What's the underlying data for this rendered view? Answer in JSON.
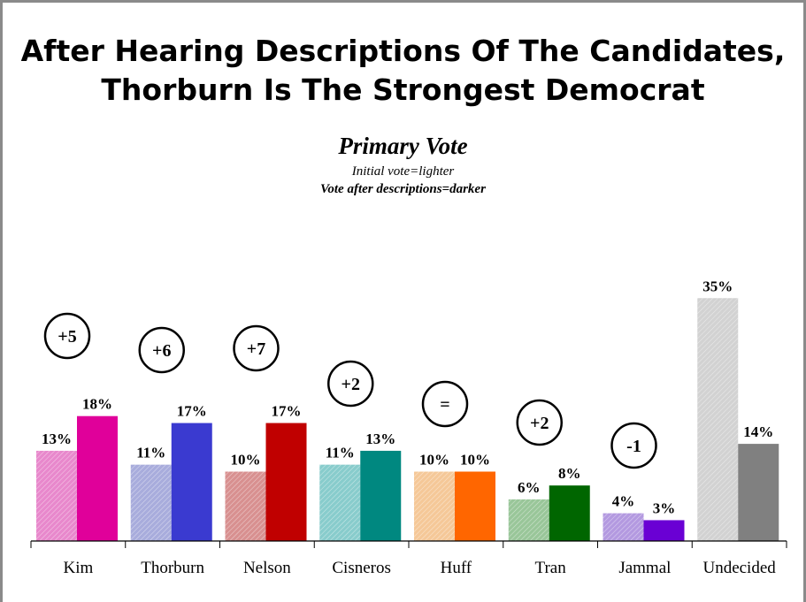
{
  "header": {
    "title_line1": "After Hearing Descriptions Of The Candidates,",
    "title_line2": "Thorburn Is The Strongest Democrat",
    "subtitle": "Primary Vote",
    "note_initial": "Initial vote=lighter",
    "note_after": "Vote after descriptions=darker"
  },
  "chart_data": {
    "type": "bar",
    "title": "Primary Vote",
    "categories": [
      "Kim",
      "Thorburn",
      "Nelson",
      "Cisneros",
      "Huff",
      "Tran",
      "Jammal",
      "Undecided"
    ],
    "series": [
      {
        "values": [
          13,
          11,
          10,
          11,
          10,
          6,
          4,
          35
        ]
      },
      {
        "values": [
          18,
          17,
          17,
          13,
          10,
          8,
          3,
          14
        ]
      }
    ],
    "value_labels": {
      "initial": [
        "13%",
        "11%",
        "10%",
        "11%",
        "10%",
        "6%",
        "4%",
        "35%"
      ],
      "after": [
        "18%",
        "17%",
        "17%",
        "13%",
        "10%",
        "8%",
        "3%",
        "14%"
      ]
    },
    "changes": [
      "+5",
      "+6",
      "+7",
      "+2",
      "=",
      "+2",
      "-1",
      ""
    ],
    "ylim": [
      0,
      40
    ],
    "grid": false,
    "legend": "none",
    "colors": {
      "after": [
        "#e0009a",
        "#3a3ad0",
        "#c00000",
        "#008880",
        "#ff6600",
        "#006600",
        "#6a00d4",
        "#808080"
      ],
      "initial": [
        "#e888cc",
        "#a8acdc",
        "#d89090",
        "#88cccc",
        "#f5c898",
        "#99c699",
        "#b399e0",
        "#d2d2d2"
      ]
    }
  }
}
